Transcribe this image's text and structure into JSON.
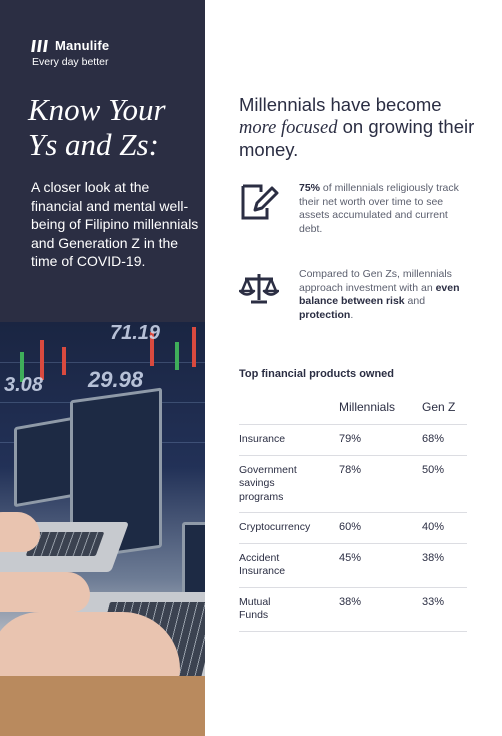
{
  "brand": {
    "name": "Manulife",
    "tagline": "Every day better"
  },
  "title": {
    "line1": "Know Your",
    "line2": "Ys and Zs:"
  },
  "subtitle": "A closer look at the financial and mental well-being of Filipino millennials and Generation Z in the time of COVID-19.",
  "photo": {
    "stock_values": [
      "71.19",
      "3.08",
      "29.98"
    ]
  },
  "headline": {
    "part1": "Millennials have become",
    "emphasis": "more focused",
    "part2": "on growing their money."
  },
  "features": [
    {
      "icon": "document-pen-icon",
      "bold": "75%",
      "text": " of millennials religiously track their net worth over time to see assets accumulated and current debt."
    },
    {
      "icon": "balance-scale-icon",
      "pre": "Compared to Gen Zs, millennials approach investment with an ",
      "bold1": "even balance between risk",
      "mid": " and ",
      "bold2": "protection",
      "post": "."
    }
  ],
  "table": {
    "title": "Top financial products owned",
    "columns": [
      "",
      "Millennials",
      "Gen Z"
    ],
    "rows": [
      {
        "product": "Insurance",
        "millennials": "79%",
        "genz": "68%"
      },
      {
        "product": "Government savings programs",
        "millennials": "78%",
        "genz": "50%"
      },
      {
        "product": "Cryptocurrency",
        "millennials": "60%",
        "genz": "40%"
      },
      {
        "product": "Accident Insurance",
        "millennials": "45%",
        "genz": "38%"
      },
      {
        "product": "Mutual Funds",
        "millennials": "38%",
        "genz": "33%"
      }
    ]
  },
  "colors": {
    "navy": "#2b2e43",
    "text_gray": "#5b5f6e",
    "divider": "#dcdde2"
  }
}
